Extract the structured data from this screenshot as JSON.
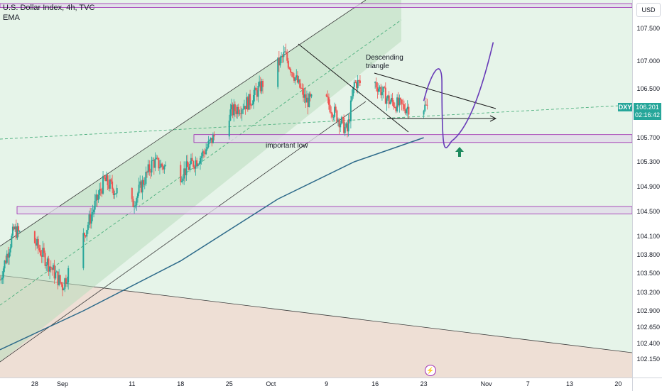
{
  "legend": {
    "title": "U.S. Dollar Index, 4h, TVC",
    "indicator": "EMA"
  },
  "currency": "USD",
  "price_ticks": [
    "107.500",
    "107.000",
    "106.500",
    "105.700",
    "105.300",
    "104.900",
    "104.500",
    "104.100",
    "103.800",
    "103.500",
    "103.200",
    "102.900",
    "102.650",
    "102.400",
    "102.150"
  ],
  "time_ticks": [
    "28",
    "Sep",
    "11",
    "18",
    "25",
    "Oct",
    "9",
    "16",
    "23",
    "Nov",
    "7",
    "13",
    "20"
  ],
  "last_price": {
    "ticker": "DXY",
    "price": "106.201",
    "countdown": "02:16:42"
  },
  "annotations": {
    "pattern_line1": "Descending",
    "pattern_line2": "triangle",
    "support": "important low"
  },
  "colors": {
    "bull": "#26a69a",
    "bear": "#ef5350",
    "ema": "#2d6a8a",
    "projection": "#673ab7",
    "zone_border": "#9c27b0",
    "arrow": "#1e8a5e"
  },
  "chart_data": {
    "type": "candlestick",
    "title": "U.S. Dollar Index, 4h, TVC",
    "timeframe": "4h",
    "x_range": [
      "2023-08-23",
      "2023-11-22"
    ],
    "ylim": [
      102.0,
      107.8
    ],
    "anchors": [
      {
        "date": "2023-08-23",
        "close": 103.4
      },
      {
        "date": "2023-08-25",
        "close": 104.2
      },
      {
        "date": "2023-08-28",
        "close": 104.0
      },
      {
        "date": "2023-09-01",
        "close": 103.3
      },
      {
        "date": "2023-09-04",
        "close": 104.1
      },
      {
        "date": "2023-09-07",
        "close": 105.0
      },
      {
        "date": "2023-09-11",
        "close": 104.6
      },
      {
        "date": "2023-09-14",
        "close": 105.3
      },
      {
        "date": "2023-09-18",
        "close": 105.1
      },
      {
        "date": "2023-09-21",
        "close": 105.4
      },
      {
        "date": "2023-09-25",
        "close": 106.1
      },
      {
        "date": "2023-09-28",
        "close": 106.3
      },
      {
        "date": "2023-10-03",
        "close": 107.1
      },
      {
        "date": "2023-10-06",
        "close": 106.3
      },
      {
        "date": "2023-10-09",
        "close": 106.3
      },
      {
        "date": "2023-10-12",
        "close": 105.8
      },
      {
        "date": "2023-10-13",
        "close": 106.6
      },
      {
        "date": "2023-10-16",
        "close": 106.6
      },
      {
        "date": "2023-10-18",
        "close": 106.3
      },
      {
        "date": "2023-10-20",
        "close": 106.2
      },
      {
        "date": "2023-10-23",
        "close": 106.2
      }
    ],
    "ema": [
      {
        "date": "2023-08-23",
        "value": 102.3
      },
      {
        "date": "2023-09-04",
        "value": 102.9
      },
      {
        "date": "2023-09-18",
        "value": 103.7
      },
      {
        "date": "2023-10-02",
        "value": 104.7
      },
      {
        "date": "2023-10-13",
        "value": 105.3
      },
      {
        "date": "2023-10-23",
        "value": 105.7
      }
    ],
    "zones": [
      {
        "label": "important low",
        "low": 105.62,
        "high": 105.75
      },
      {
        "label": "",
        "low": 104.46,
        "high": 104.58
      },
      {
        "label": "",
        "low": 107.82,
        "high": 107.88
      }
    ],
    "projection": [
      {
        "date": "2023-10-23",
        "value": 106.3
      },
      {
        "date": "2023-10-25",
        "value": 106.6
      },
      {
        "date": "2023-10-27",
        "value": 105.7
      },
      {
        "date": "2023-10-31",
        "value": 106.3
      },
      {
        "date": "2023-11-02",
        "value": 107.2
      }
    ]
  }
}
